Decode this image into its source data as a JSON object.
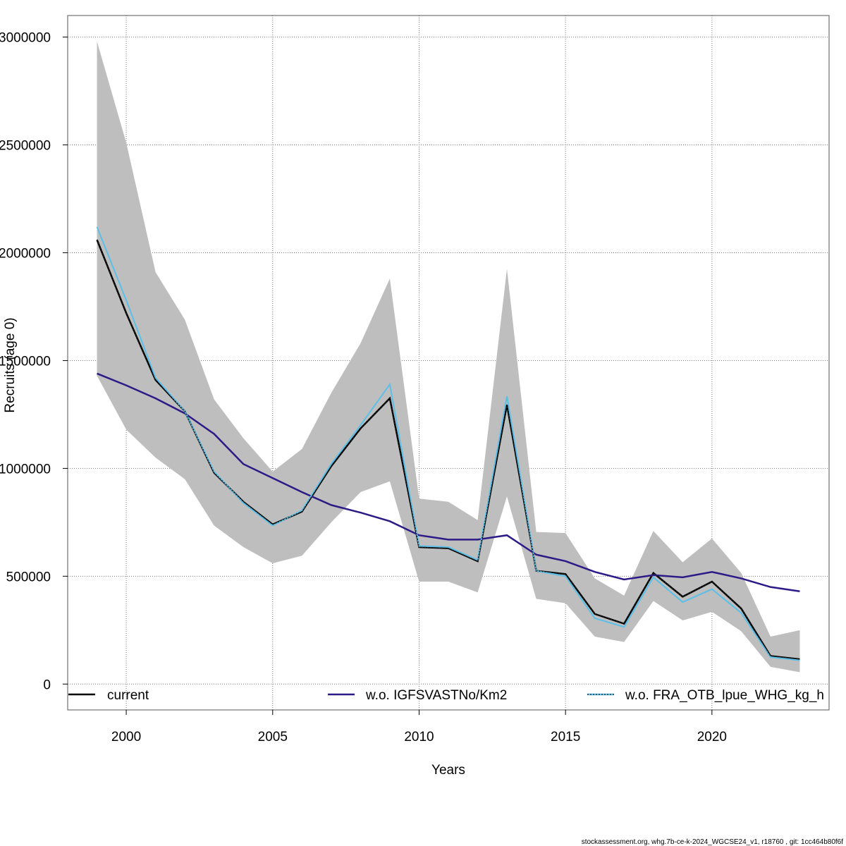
{
  "chart_data": {
    "type": "line",
    "xlabel": "Years",
    "ylabel": "Recruits (age 0)",
    "xlim": [
      1998,
      2024
    ],
    "ylim": [
      -120000,
      3100000
    ],
    "x_ticks": [
      2000,
      2005,
      2010,
      2015,
      2020
    ],
    "y_ticks": [
      0,
      500000,
      1000000,
      1500000,
      2000000,
      2500000,
      3000000
    ],
    "y_tick_labels": [
      "0",
      "500000",
      "1000000",
      "1500000",
      "2000000",
      "2500000",
      "3000000"
    ],
    "grid": true,
    "legend_position": "bottom",
    "x": [
      1999,
      2000,
      2001,
      2002,
      2003,
      2004,
      2005,
      2006,
      2007,
      2008,
      2009,
      2010,
      2011,
      2012,
      2013,
      2014,
      2015,
      2016,
      2017,
      2018,
      2019,
      2020,
      2021,
      2022,
      2023
    ],
    "band": {
      "color": "#bebebe",
      "upper": [
        2980000,
        2510000,
        1910000,
        1690000,
        1320000,
        1140000,
        985000,
        1090000,
        1350000,
        1580000,
        1880000,
        860000,
        845000,
        760000,
        1925000,
        705000,
        700000,
        490000,
        410000,
        710000,
        565000,
        675000,
        515000,
        220000,
        250000
      ],
      "lower": [
        1430000,
        1180000,
        1050000,
        950000,
        735000,
        635000,
        560000,
        595000,
        750000,
        890000,
        940000,
        475000,
        475000,
        425000,
        870000,
        395000,
        375000,
        220000,
        195000,
        385000,
        295000,
        335000,
        245000,
        80000,
        55000
      ]
    },
    "series": [
      {
        "name": "current",
        "color": "#000000",
        "style": "solid",
        "values": [
          2060000,
          1720000,
          1410000,
          1265000,
          980000,
          845000,
          740000,
          800000,
          1010000,
          1185000,
          1325000,
          635000,
          630000,
          570000,
          1295000,
          525000,
          510000,
          325000,
          280000,
          515000,
          405000,
          475000,
          350000,
          130000,
          115000
        ]
      },
      {
        "name": "w.o. IGFSVASTNo/Km2",
        "color": "#2e1a87",
        "style": "solid",
        "values": [
          1440000,
          1385000,
          1325000,
          1255000,
          1160000,
          1020000,
          955000,
          890000,
          830000,
          795000,
          755000,
          690000,
          670000,
          670000,
          690000,
          600000,
          570000,
          520000,
          485000,
          505000,
          495000,
          520000,
          490000,
          450000,
          430000
        ]
      },
      {
        "name": "w.o. FRA_OTB_lpue_WHG_kg_h",
        "color": "#5bbfe8",
        "style": "dotted",
        "values": [
          2120000,
          1780000,
          1420000,
          1265000,
          985000,
          840000,
          735000,
          805000,
          1020000,
          1200000,
          1390000,
          640000,
          635000,
          575000,
          1335000,
          525000,
          500000,
          305000,
          265000,
          495000,
          380000,
          440000,
          330000,
          125000,
          110000
        ]
      }
    ],
    "footer": "stockassessment.org, whg.7b-ce-k-2024_WGCSE24_v1, r18760 , git: 1cc464b80f6f"
  }
}
